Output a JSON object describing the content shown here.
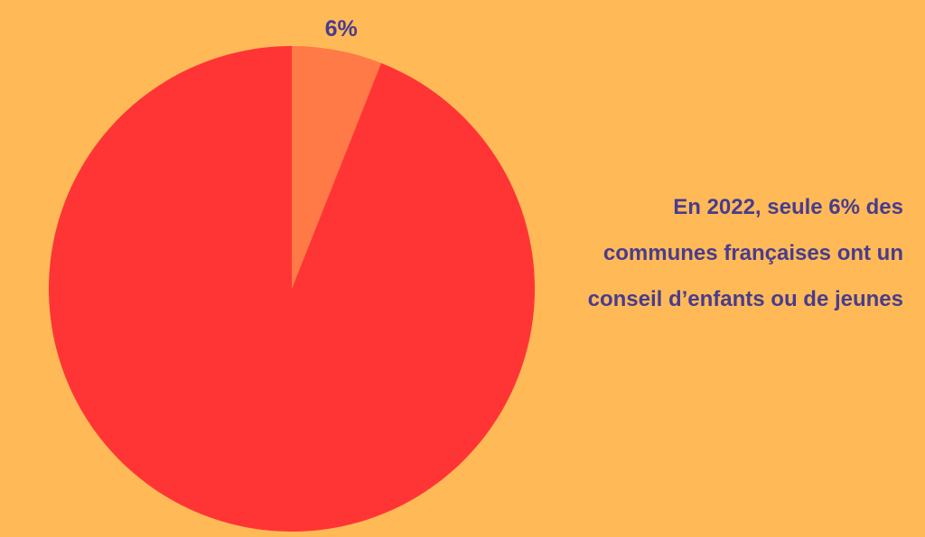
{
  "colors": {
    "background": "#FFBA57",
    "text": "#4A3C8C"
  },
  "chart_data": {
    "type": "pie",
    "title": "",
    "slices": [
      {
        "label": "6%",
        "value": 6,
        "color": "#FF7A47"
      },
      {
        "label": "",
        "value": 94,
        "color": "#FF3535"
      }
    ],
    "start_angle_deg": 0,
    "direction": "clockwise"
  },
  "caption": {
    "lines": [
      "En 2022, seule 6% des",
      "communes françaises ont un",
      "conseil d’enfants ou de jeunes"
    ]
  }
}
